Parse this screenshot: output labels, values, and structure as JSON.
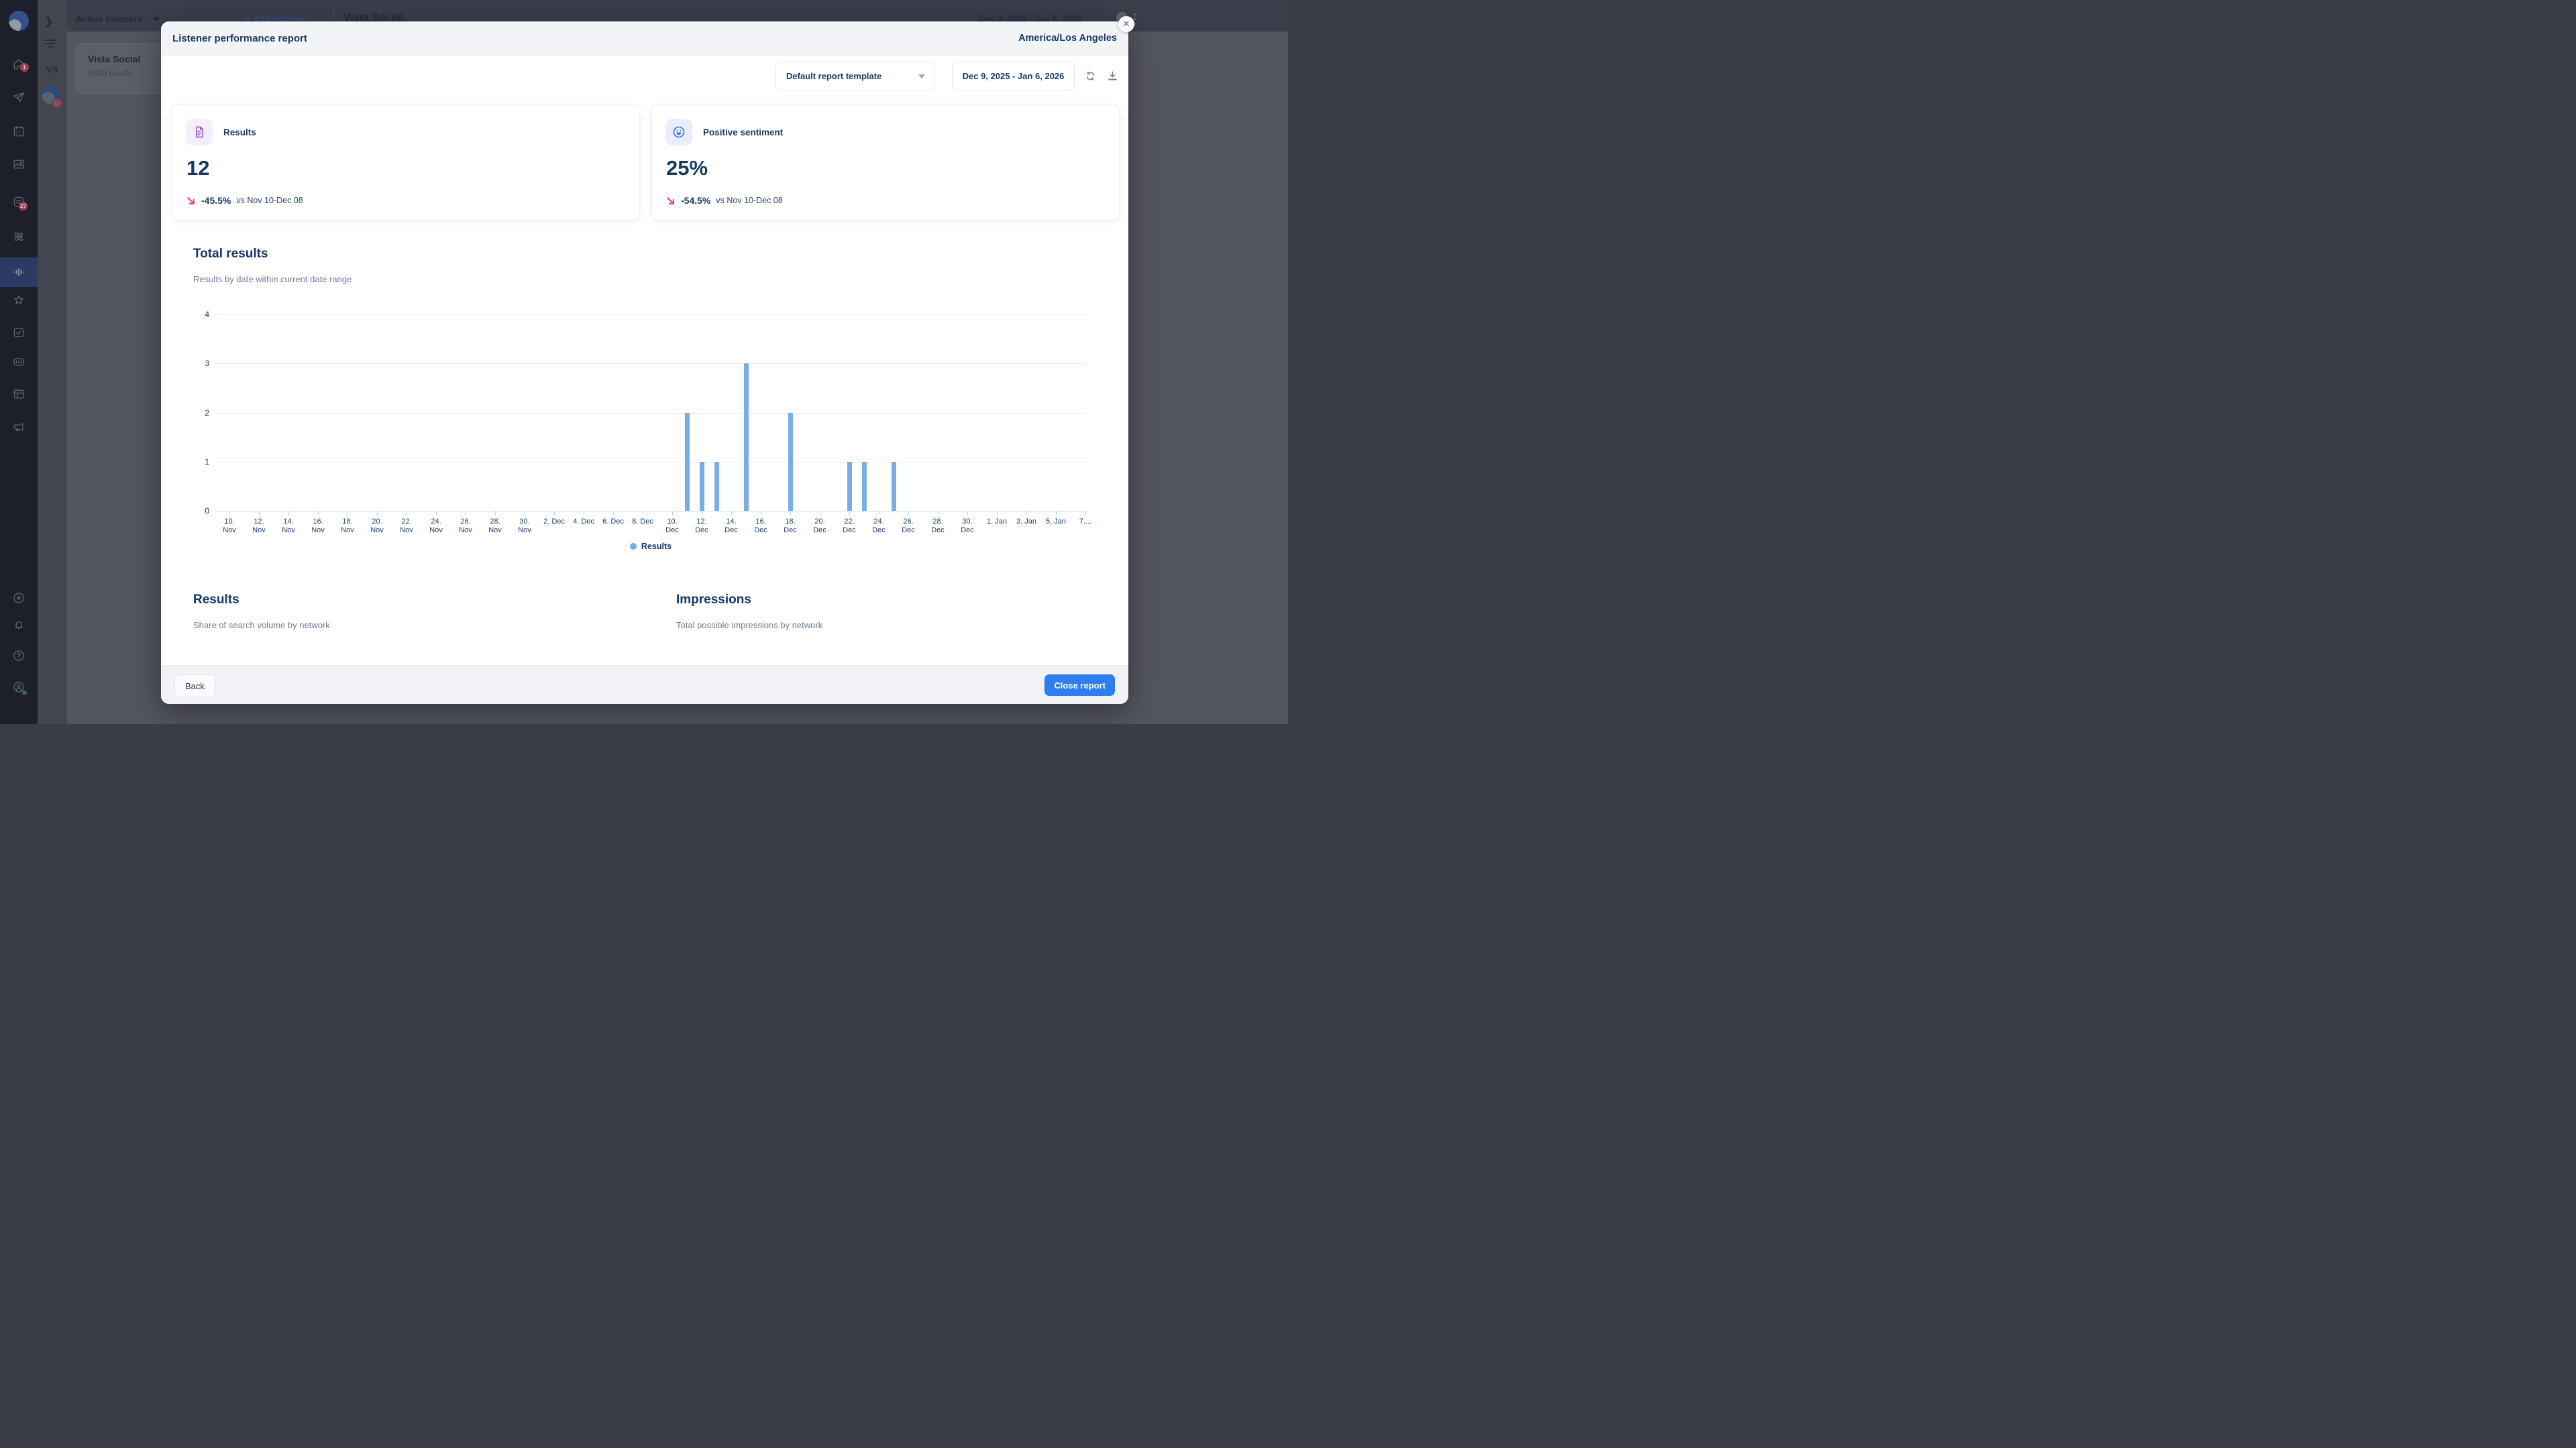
{
  "backdrop": {
    "topbar": {
      "active_listeners": "Active listeners",
      "add_listener": "+ Add listener",
      "page_title": "Vista Social",
      "date_range": "Dec 9, 2025 - Jan 6, 2026",
      "info_icon": "i"
    },
    "workspace": {
      "initials": "VS",
      "badge": "1"
    },
    "listener_card": {
      "title": "Vista Social",
      "subtitle": "9,033 results"
    },
    "sidebar_badges": {
      "home": "1",
      "inbox": "27"
    }
  },
  "modal": {
    "title": "Listener performance report",
    "timezone": "America/Los Angeles",
    "template_selector": "Default report template",
    "date_range": "Dec 9, 2025 - Jan 6, 2026",
    "close_x": "✕",
    "cards": [
      {
        "label": "Results",
        "value": "12",
        "delta": "-45.5%",
        "compare": "vs Nov 10-Dec 08"
      },
      {
        "label": "Positive sentiment",
        "value": "25%",
        "delta": "-54.5%",
        "compare": "vs Nov 10-Dec 08"
      }
    ],
    "sections": {
      "total_results": {
        "title": "Total results",
        "subtitle": "Results by date within current date range"
      },
      "results": {
        "title": "Results",
        "subtitle": "Share of search volume by network"
      },
      "impressions": {
        "title": "Impressions",
        "subtitle": "Total possible impressions by network"
      }
    },
    "legend": "Results",
    "back": "Back",
    "close_report": "Close report"
  },
  "chart_data": {
    "type": "bar",
    "title": "Total results",
    "xlabel": "",
    "ylabel": "",
    "ylim": [
      0,
      4
    ],
    "yticks": [
      0,
      1,
      2,
      3,
      4
    ],
    "grid": true,
    "legend_position": "bottom",
    "bar_color": "#79ade6",
    "x_tick_labels": [
      "10. Nov",
      "12. Nov",
      "14. Nov",
      "16. Nov",
      "18. Nov",
      "20. Nov",
      "22. Nov",
      "24. Nov",
      "26. Nov",
      "28. Nov",
      "30. Nov",
      "2. Dec",
      "4. Dec",
      "6. Dec",
      "8. Dec",
      "10. Dec",
      "12. Dec",
      "14. Dec",
      "16. Dec",
      "18. Dec",
      "20. Dec",
      "22. Dec",
      "24. Dec",
      "26. Dec",
      "28. Dec",
      "30. Dec",
      "1. Jan",
      "3. Jan",
      "5. Jan",
      "7...."
    ],
    "x_axis_start": "Nov 10",
    "series": [
      {
        "name": "Results",
        "points": [
          {
            "date": "Dec 11",
            "day_index": 31,
            "value": 2
          },
          {
            "date": "Dec 12",
            "day_index": 32,
            "value": 1
          },
          {
            "date": "Dec 13",
            "day_index": 33,
            "value": 1
          },
          {
            "date": "Dec 15",
            "day_index": 35,
            "value": 3
          },
          {
            "date": "Dec 18",
            "day_index": 38,
            "value": 2
          },
          {
            "date": "Dec 22",
            "day_index": 42,
            "value": 1
          },
          {
            "date": "Dec 23",
            "day_index": 43,
            "value": 1
          },
          {
            "date": "Dec 25",
            "day_index": 45,
            "value": 1
          }
        ]
      }
    ]
  },
  "colors": {
    "accent_blue": "#2e7ef0",
    "bar_blue": "#79ade6",
    "navy_text": "#1b3c69",
    "delta_pink": "#ee3d74",
    "purple_icon": "#8f46d8",
    "smiley_blue": "#3f6ae0"
  }
}
